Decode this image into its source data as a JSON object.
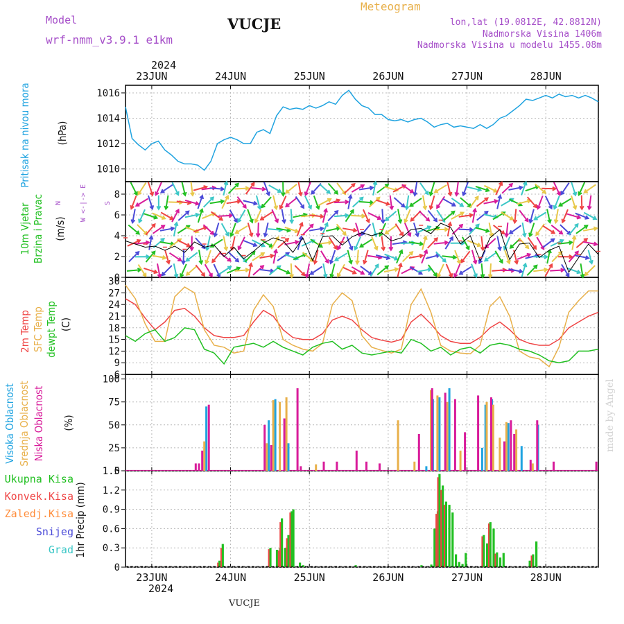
{
  "header": {
    "model_label": "Model",
    "model_name": "wrf-nmm_v3.9.1 e1km",
    "station": "VUCJE",
    "meteogram_label": "Meteogram",
    "lonlat": "lon,lat (19.0812E, 42.8812N)",
    "altitude": "Nadmorska Visina 1406m",
    "model_altitude": "Nadmorska Visina u modelu 1455.08m",
    "year_top": "2024",
    "year_bottom": "2024",
    "footer_station": "VUCJE",
    "watermark": "made by Angel"
  },
  "colors": {
    "pressure": "#1fa3e0",
    "temp2m": "#ef4444",
    "sfc": "#e8b04a",
    "dew": "#22c022",
    "high": "#1fa3e0",
    "mid": "#e8b04a",
    "low": "#d81b9a",
    "total": "#22c022",
    "conv": "#ef4444",
    "frozen": "#ff8c3a",
    "snow": "#4a4ad8",
    "hail": "#3cc7c7",
    "wind_line": "#000000",
    "gust": "#ef4444"
  },
  "chart_data": [
    {
      "id": "pressure",
      "type": "line",
      "x_labels": [
        "23JUN",
        "24JUN",
        "25JUN",
        "26JUN",
        "27JUN",
        "28JUN"
      ],
      "ylabel_line1": "Pritisak na nivou mora",
      "ylabel_line2": "(hPa)",
      "ylim": [
        1009,
        1016.6
      ],
      "yticks": [
        1010,
        1012,
        1014,
        1016
      ],
      "x": [
        0,
        2,
        4,
        6,
        8,
        10,
        12,
        14,
        16,
        18,
        20,
        22,
        24,
        26,
        28,
        30,
        32,
        34,
        36,
        38,
        40,
        42,
        44,
        46,
        48,
        50,
        52,
        54,
        56,
        58,
        60,
        62,
        64,
        66,
        68,
        70,
        72,
        74,
        76,
        78,
        80,
        82,
        84,
        86,
        88,
        90,
        92,
        94,
        96,
        98,
        100,
        102,
        104,
        106,
        108,
        110,
        112,
        114,
        116,
        118,
        120,
        122,
        124,
        126,
        128,
        130,
        132,
        134,
        136,
        138,
        140,
        142,
        144
      ],
      "values": [
        1014.9,
        1012.4,
        1011.9,
        1011.5,
        1012.0,
        1012.2,
        1011.5,
        1011.1,
        1010.6,
        1010.4,
        1010.4,
        1010.3,
        1009.9,
        1010.6,
        1012.0,
        1012.3,
        1012.5,
        1012.3,
        1012.0,
        1012.0,
        1012.9,
        1013.1,
        1012.8,
        1014.2,
        1014.9,
        1014.7,
        1014.8,
        1014.7,
        1015.0,
        1014.8,
        1015.0,
        1015.3,
        1015.1,
        1015.8,
        1016.2,
        1015.5,
        1015.0,
        1014.8,
        1014.3,
        1014.3,
        1013.9,
        1013.8,
        1013.9,
        1013.7,
        1013.9,
        1014.0,
        1013.7,
        1013.3,
        1013.5,
        1013.6,
        1013.3,
        1013.4,
        1013.3,
        1013.2,
        1013.5,
        1013.2,
        1013.5,
        1014.0,
        1014.2,
        1014.6,
        1015.0,
        1015.5,
        1015.4,
        1015.6,
        1015.8,
        1015.6,
        1015.9,
        1015.7,
        1015.8,
        1015.6,
        1015.8,
        1015.6,
        1015.3
      ]
    },
    {
      "id": "wind",
      "type": "line",
      "x_labels": [
        "23JUN",
        "24JUN",
        "25JUN",
        "26JUN",
        "27JUN",
        "28JUN"
      ],
      "ylabel_line1": "10m Vjetar",
      "ylabel_line2": "Brzina i Pravac",
      "ylabel_unit": "(m/s)",
      "compass_n": "N",
      "compass_ew": "W <-|-> E",
      "compass_s": "S",
      "ylim": [
        0,
        9.2
      ],
      "yticks": [
        0,
        2,
        4,
        6,
        8
      ],
      "x": [
        0,
        3,
        6,
        9,
        12,
        15,
        18,
        21,
        24,
        27,
        30,
        33,
        36,
        39,
        42,
        45,
        48,
        51,
        54,
        57,
        60,
        63,
        66,
        69,
        72,
        75,
        78,
        81,
        84,
        87,
        90,
        93,
        96,
        99,
        102,
        105,
        108,
        111,
        114,
        117,
        120,
        123,
        126,
        129,
        132,
        135,
        138,
        141,
        144
      ],
      "values": [
        3.5,
        3.2,
        2.9,
        3.0,
        2.6,
        3.0,
        2.4,
        3.4,
        2.9,
        3.1,
        2.0,
        2.9,
        1.8,
        2.5,
        3.3,
        3.8,
        3.5,
        2.4,
        3.8,
        1.6,
        3.9,
        4.0,
        3.1,
        3.9,
        4.3,
        4.0,
        4.3,
        3.5,
        3.8,
        4.6,
        4.7,
        4.2,
        5.2,
        4.8,
        3.2,
        4.0,
        1.6,
        3.8,
        4.6,
        1.7,
        3.2,
        3.3,
        1.9,
        2.6,
        3.0,
        0.5,
        1.9,
        3.2,
        2.2
      ]
    },
    {
      "id": "temperature",
      "type": "line",
      "x_labels": [
        "23JUN",
        "24JUN",
        "25JUN",
        "26JUN",
        "27JUN",
        "28JUN"
      ],
      "ylabel_a": "2m Temp",
      "ylabel_b": "SFC Temp",
      "ylabel_c": "dewpt Temp",
      "ylabel_unit": "(C)",
      "ylim": [
        6,
        31
      ],
      "yticks": [
        6,
        9,
        12,
        15,
        18,
        21,
        24,
        27,
        30
      ],
      "x": [
        0,
        3,
        6,
        9,
        12,
        15,
        18,
        21,
        24,
        27,
        30,
        33,
        36,
        39,
        42,
        45,
        48,
        51,
        54,
        57,
        60,
        63,
        66,
        69,
        72,
        75,
        78,
        81,
        84,
        87,
        90,
        93,
        96,
        99,
        102,
        105,
        108,
        111,
        114,
        117,
        120,
        123,
        126,
        129,
        132,
        135,
        138,
        141,
        144
      ],
      "series": [
        {
          "name": "2m Temp",
          "values": [
            25.5,
            24.0,
            20.5,
            17.5,
            19.5,
            22.5,
            23.0,
            21.0,
            18.0,
            16.0,
            15.5,
            15.5,
            16.0,
            19.5,
            22.5,
            21.0,
            17.5,
            15.5,
            15.0,
            15.0,
            16.5,
            20.0,
            21.0,
            20.0,
            17.5,
            15.5,
            14.8,
            14.3,
            15.0,
            19.5,
            21.5,
            19.0,
            16.0,
            14.5,
            14.0,
            14.0,
            15.5,
            18.0,
            19.5,
            17.5,
            15.0,
            14.0,
            13.5,
            13.5,
            15.0,
            18.0,
            19.5,
            21.0,
            22.0
          ]
        },
        {
          "name": "SFC Temp",
          "values": [
            29.0,
            25.5,
            19.0,
            14.5,
            14.5,
            26.0,
            28.5,
            27.0,
            17.5,
            13.5,
            13.0,
            11.5,
            12.0,
            22.5,
            26.5,
            23.5,
            15.0,
            13.5,
            12.5,
            12.0,
            14.0,
            24.0,
            27.0,
            25.0,
            16.0,
            13.0,
            12.2,
            11.5,
            12.5,
            24.0,
            28.0,
            22.0,
            13.5,
            12.0,
            11.5,
            11.3,
            13.5,
            23.5,
            26.0,
            21.0,
            12.0,
            10.5,
            10.0,
            8.0,
            13.0,
            22.0,
            25.0,
            27.5,
            27.5
          ]
        },
        {
          "name": "dewpt Temp",
          "values": [
            16.0,
            14.5,
            16.5,
            17.5,
            14.5,
            15.5,
            18.0,
            17.5,
            12.5,
            11.5,
            8.7,
            13.0,
            13.5,
            14.0,
            13.0,
            14.5,
            13.0,
            12.0,
            11.0,
            13.0,
            14.0,
            14.5,
            12.5,
            13.5,
            11.5,
            11.0,
            11.5,
            12.0,
            11.5,
            15.0,
            14.0,
            12.0,
            13.0,
            11.0,
            12.5,
            13.0,
            11.5,
            13.5,
            14.0,
            13.5,
            12.5,
            12.0,
            11.0,
            9.5,
            9.0,
            9.5,
            12.0,
            12.0,
            12.5
          ]
        }
      ]
    },
    {
      "id": "clouds",
      "type": "bar",
      "x_labels": [
        "23JUN",
        "24JUN",
        "25JUN",
        "26JUN",
        "27JUN",
        "28JUN"
      ],
      "ylabel_a": "Visoka Oblacnost",
      "ylabel_b": "Srednja Oblacnost",
      "ylabel_c": "Niska Oblacnost",
      "ylabel_unit": "(%)",
      "ylim": [
        0,
        105
      ],
      "yticks": [
        0,
        25,
        50,
        75,
        100
      ],
      "series": [
        {
          "name": "Visoka Oblacnost",
          "points": [
            [
              25,
              70
            ],
            [
              44,
              55
            ],
            [
              46,
              78
            ],
            [
              50,
              30
            ],
            [
              92,
              5
            ],
            [
              94,
              78
            ],
            [
              96,
              80
            ],
            [
              99,
              90
            ],
            [
              109,
              25
            ],
            [
              110,
              72
            ],
            [
              112,
              78
            ],
            [
              117,
              52
            ],
            [
              121,
              27
            ],
            [
              126,
              50
            ]
          ]
        },
        {
          "name": "Srednja Oblacnost",
          "points": [
            [
              24,
              32
            ],
            [
              43,
              30
            ],
            [
              45,
              77
            ],
            [
              47,
              75
            ],
            [
              49,
              80
            ],
            [
              58,
              7
            ],
            [
              83,
              55
            ],
            [
              88,
              10
            ],
            [
              93,
              88
            ],
            [
              95,
              82
            ],
            [
              98,
              75
            ],
            [
              102,
              22
            ],
            [
              110,
              75
            ],
            [
              112,
              72
            ],
            [
              114,
              36
            ],
            [
              116,
              53
            ],
            [
              119,
              45
            ],
            [
              124,
              8
            ]
          ]
        },
        {
          "name": "Niska Oblacnost",
          "points": [
            [
              21,
              8
            ],
            [
              22,
              8
            ],
            [
              23,
              22
            ],
            [
              25,
              72
            ],
            [
              42,
              50
            ],
            [
              44,
              28
            ],
            [
              48,
              57
            ],
            [
              52,
              90
            ],
            [
              53,
              5
            ],
            [
              60,
              10
            ],
            [
              64,
              10
            ],
            [
              70,
              22
            ],
            [
              73,
              10
            ],
            [
              77,
              8
            ],
            [
              89,
              40
            ],
            [
              93,
              90
            ],
            [
              97,
              85
            ],
            [
              100,
              78
            ],
            [
              103,
              42
            ],
            [
              107,
              82
            ],
            [
              111,
              80
            ],
            [
              115,
              32
            ],
            [
              117,
              55
            ],
            [
              118,
              40
            ],
            [
              123,
              12
            ],
            [
              125,
              55
            ],
            [
              130,
              10
            ],
            [
              143,
              10
            ]
          ]
        }
      ]
    },
    {
      "id": "precip",
      "type": "bar",
      "x_labels": [
        "23JUN",
        "24JUN",
        "25JUN",
        "26JUN",
        "27JUN",
        "28JUN"
      ],
      "ylabel_a": "1hr Precip",
      "ylabel_unit": "(mm)",
      "legend": [
        "Ukupna Kisa",
        "Konvek.Kisa",
        "Zaledj.Kisa",
        "Snijeg",
        "Grad"
      ],
      "ylim": [
        0,
        1.5
      ],
      "yticks": [
        0,
        0.3,
        0.6,
        0.9,
        1.2,
        1.5
      ],
      "series": [
        {
          "name": "Ukupna Kisa",
          "points": [
            [
              28.5,
              0.1
            ],
            [
              29.5,
              0.36
            ],
            [
              44,
              0.3
            ],
            [
              46,
              0.27
            ],
            [
              47,
              0.3
            ],
            [
              47.5,
              0.76
            ],
            [
              48.5,
              0.3
            ],
            [
              49.5,
              0.5
            ],
            [
              50.5,
              0.87
            ],
            [
              51,
              0.9
            ],
            [
              53,
              0.07
            ],
            [
              54,
              0.03
            ],
            [
              70,
              0.03
            ],
            [
              90,
              0.03
            ],
            [
              93,
              0.04
            ],
            [
              94,
              0.6
            ],
            [
              95,
              0.87
            ],
            [
              95.5,
              1.45
            ],
            [
              96.5,
              1.27
            ],
            [
              97.5,
              1.02
            ],
            [
              98.5,
              0.97
            ],
            [
              99.5,
              0.85
            ],
            [
              100.5,
              0.2
            ],
            [
              101.5,
              0.08
            ],
            [
              102.5,
              0.05
            ],
            [
              103.5,
              0.22
            ],
            [
              109,
              0.5
            ],
            [
              110,
              0.37
            ],
            [
              111,
              0.7
            ],
            [
              112,
              0.6
            ],
            [
              113,
              0.23
            ],
            [
              114,
              0.15
            ],
            [
              115,
              0.22
            ],
            [
              123,
              0.1
            ],
            [
              124,
              0.2
            ],
            [
              125,
              0.4
            ]
          ]
        },
        {
          "name": "Konvek.Kisa",
          "points": [
            [
              28.5,
              0.07
            ],
            [
              29.5,
              0.3
            ],
            [
              44,
              0.28
            ],
            [
              47,
              0.26
            ],
            [
              47.5,
              0.7
            ],
            [
              49.5,
              0.45
            ],
            [
              50.5,
              0.85
            ],
            [
              95,
              0.83
            ],
            [
              95.5,
              1.4
            ],
            [
              96.5,
              1.2
            ],
            [
              97.5,
              0.97
            ],
            [
              109,
              0.48
            ],
            [
              111,
              0.68
            ],
            [
              113,
              0.21
            ],
            [
              124,
              0.18
            ]
          ]
        }
      ]
    }
  ]
}
